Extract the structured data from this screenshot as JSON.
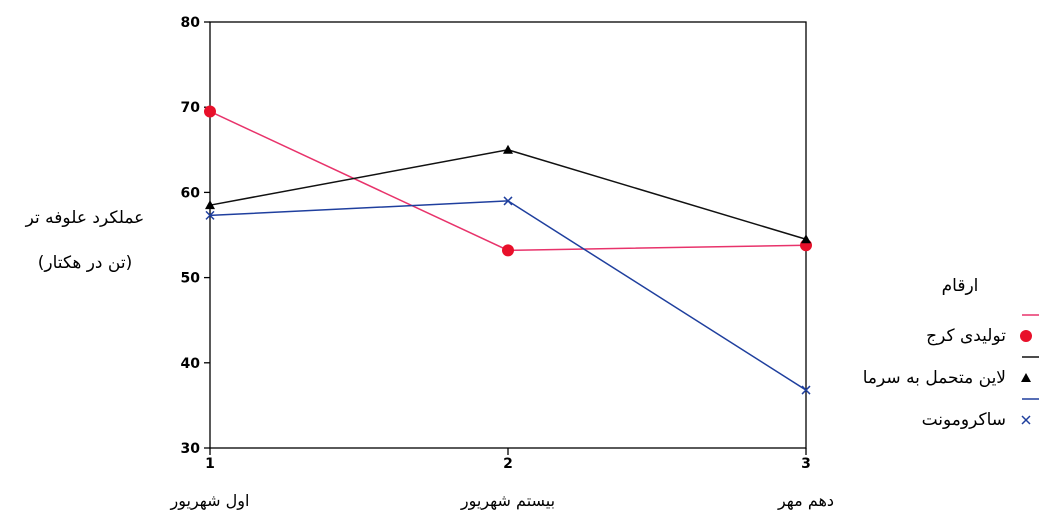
{
  "chart_data": {
    "type": "line",
    "x": [
      1,
      2,
      3
    ],
    "xlim": [
      1,
      3
    ],
    "ylim": [
      30,
      80
    ],
    "y_ticks": [
      30,
      40,
      50,
      60,
      70,
      80
    ],
    "x_ticks": [
      1,
      2,
      3
    ],
    "x_category_labels": [
      "اول شهریور",
      "بیستم شهریور",
      "دهم مهر"
    ],
    "ylabel_line1": "عملکرد علوفه تر",
    "ylabel_line2": "(تن در هکتار)",
    "legend_title": "ارقام",
    "legend_position": "right",
    "grid": false,
    "series": [
      {
        "name": "تولیدی کرج",
        "values": [
          69.5,
          53.2,
          53.8
        ],
        "color": "#e8336b",
        "marker": "circle",
        "marker_color": "#e8102a"
      },
      {
        "name": "لاین متحمل به سرما",
        "values": [
          58.5,
          65,
          54.5
        ],
        "color": "#111111",
        "marker": "triangle",
        "marker_color": "#000000"
      },
      {
        "name": "ساکرومونت",
        "values": [
          57.3,
          59,
          36.8
        ],
        "color": "#1f3f9e",
        "marker": "x",
        "marker_color": "#1f3f9e"
      }
    ]
  }
}
